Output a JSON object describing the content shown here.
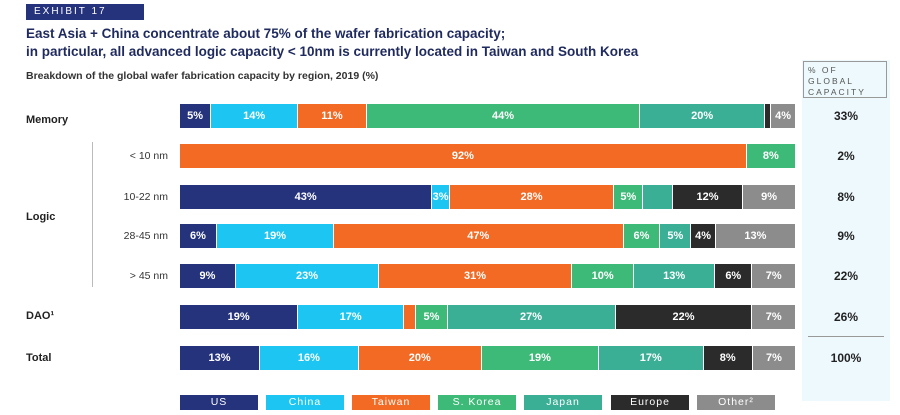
{
  "exhibit": "EXHIBIT 17",
  "title_line1": "East Asia + China concentrate about 75% of the wafer fabrication capacity;",
  "title_line2": "in particular, all advanced logic capacity < 10nm is currently located in Taiwan and South Korea",
  "subtitle": "Breakdown of the global wafer fabrication capacity by region, 2019 (%)",
  "global_header": "% OF GLOBAL CAPACITY",
  "groups": {
    "memory": "Memory",
    "logic": "Logic",
    "dao": "DAO¹",
    "total": "Total"
  },
  "chart_data": {
    "type": "bar",
    "stacked": true,
    "orientation": "horizontal",
    "rows": [
      "Memory",
      "< 10 nm",
      "10-22 nm",
      "28-45 nm",
      "> 45 nm",
      "DAO¹",
      "Total"
    ],
    "series": [
      {
        "name": "US",
        "color": "#25337d",
        "values": [
          5,
          0,
          43,
          6,
          9,
          19,
          13
        ]
      },
      {
        "name": "China",
        "color": "#1dc6f2",
        "values": [
          14,
          0,
          3,
          19,
          23,
          17,
          16
        ]
      },
      {
        "name": "Taiwan",
        "color": "#f26a23",
        "values": [
          11,
          92,
          28,
          47,
          31,
          2,
          20
        ]
      },
      {
        "name": "S. Korea",
        "color": "#3dba77",
        "values": [
          44,
          8,
          5,
          6,
          10,
          5,
          19
        ]
      },
      {
        "name": "Japan",
        "color": "#3aaf95",
        "values": [
          20,
          0,
          5,
          5,
          13,
          27,
          17
        ]
      },
      {
        "name": "Europe",
        "color": "#2b2b2b",
        "values": [
          1,
          0,
          12,
          4,
          6,
          22,
          8
        ]
      },
      {
        "name": "Other²",
        "color": "#8c8c8c",
        "values": [
          4,
          0,
          9,
          13,
          7,
          7,
          7
        ]
      }
    ],
    "labels": [
      [
        "5%",
        "14%",
        "11%",
        "44%",
        "20%",
        "",
        "4%"
      ],
      [
        "",
        "",
        "92%",
        "8%",
        "",
        "",
        ""
      ],
      [
        "43%",
        "3%",
        "28%",
        "5%",
        "",
        "12%",
        "9%"
      ],
      [
        "6%",
        "19%",
        "47%",
        "6%",
        "5%",
        "4%",
        "13%"
      ],
      [
        "9%",
        "23%",
        "31%",
        "10%",
        "13%",
        "6%",
        "7%"
      ],
      [
        "19%",
        "17%",
        "",
        "5%",
        "27%",
        "22%",
        "7%"
      ],
      [
        "13%",
        "16%",
        "20%",
        "19%",
        "17%",
        "8%",
        "7%"
      ]
    ],
    "global_capacity": [
      "33%",
      "2%",
      "8%",
      "9%",
      "22%",
      "26%",
      "100%"
    ],
    "legend_placement": "bottom"
  }
}
